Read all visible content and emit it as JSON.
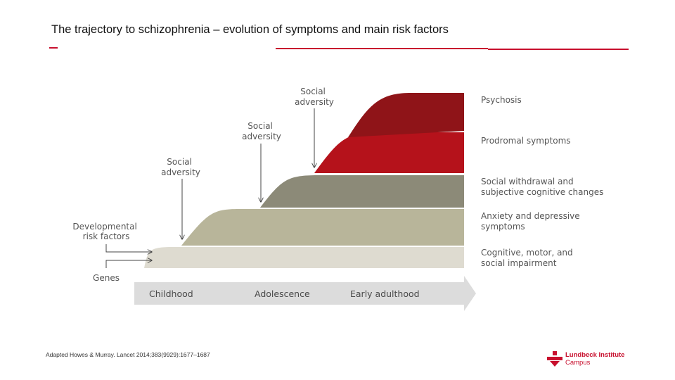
{
  "title": "The trajectory to schizophrenia  – evolution of symptoms and main risk factors",
  "diagram": {
    "layers": [
      {
        "lines": [
          "Psychosis"
        ],
        "color": "#8f1418"
      },
      {
        "lines": [
          "Prodromal symptoms"
        ],
        "color": "#b5121b"
      },
      {
        "lines": [
          "Social withdrawal and",
          "subjective cognitive changes"
        ],
        "color": "#8c8a78"
      },
      {
        "lines": [
          "Anxiety and depressive",
          "symptoms"
        ],
        "color": "#b8b59a"
      },
      {
        "lines": [
          "Cognitive, motor, and",
          "social impairment"
        ],
        "color": "#dedbd0"
      }
    ],
    "social_adversity": [
      {
        "lines": [
          "Social",
          "adversity"
        ]
      },
      {
        "lines": [
          "Social",
          "adversity"
        ]
      },
      {
        "lines": [
          "Social",
          "adversity"
        ]
      }
    ],
    "developmental": {
      "lines": [
        "Developmental",
        "risk factors"
      ]
    },
    "genes": "Genes",
    "timeline": [
      "Childhood",
      "Adolescence",
      "Early adulthood"
    ],
    "timeline_color": "#dcdcdc"
  },
  "footnote": "Adapted Howes & Murray. Lancet 2014;383(9929):1677–1687",
  "logo": {
    "name": "Lundbeck Institute",
    "sub": "Campus",
    "color": "#c8102e"
  }
}
